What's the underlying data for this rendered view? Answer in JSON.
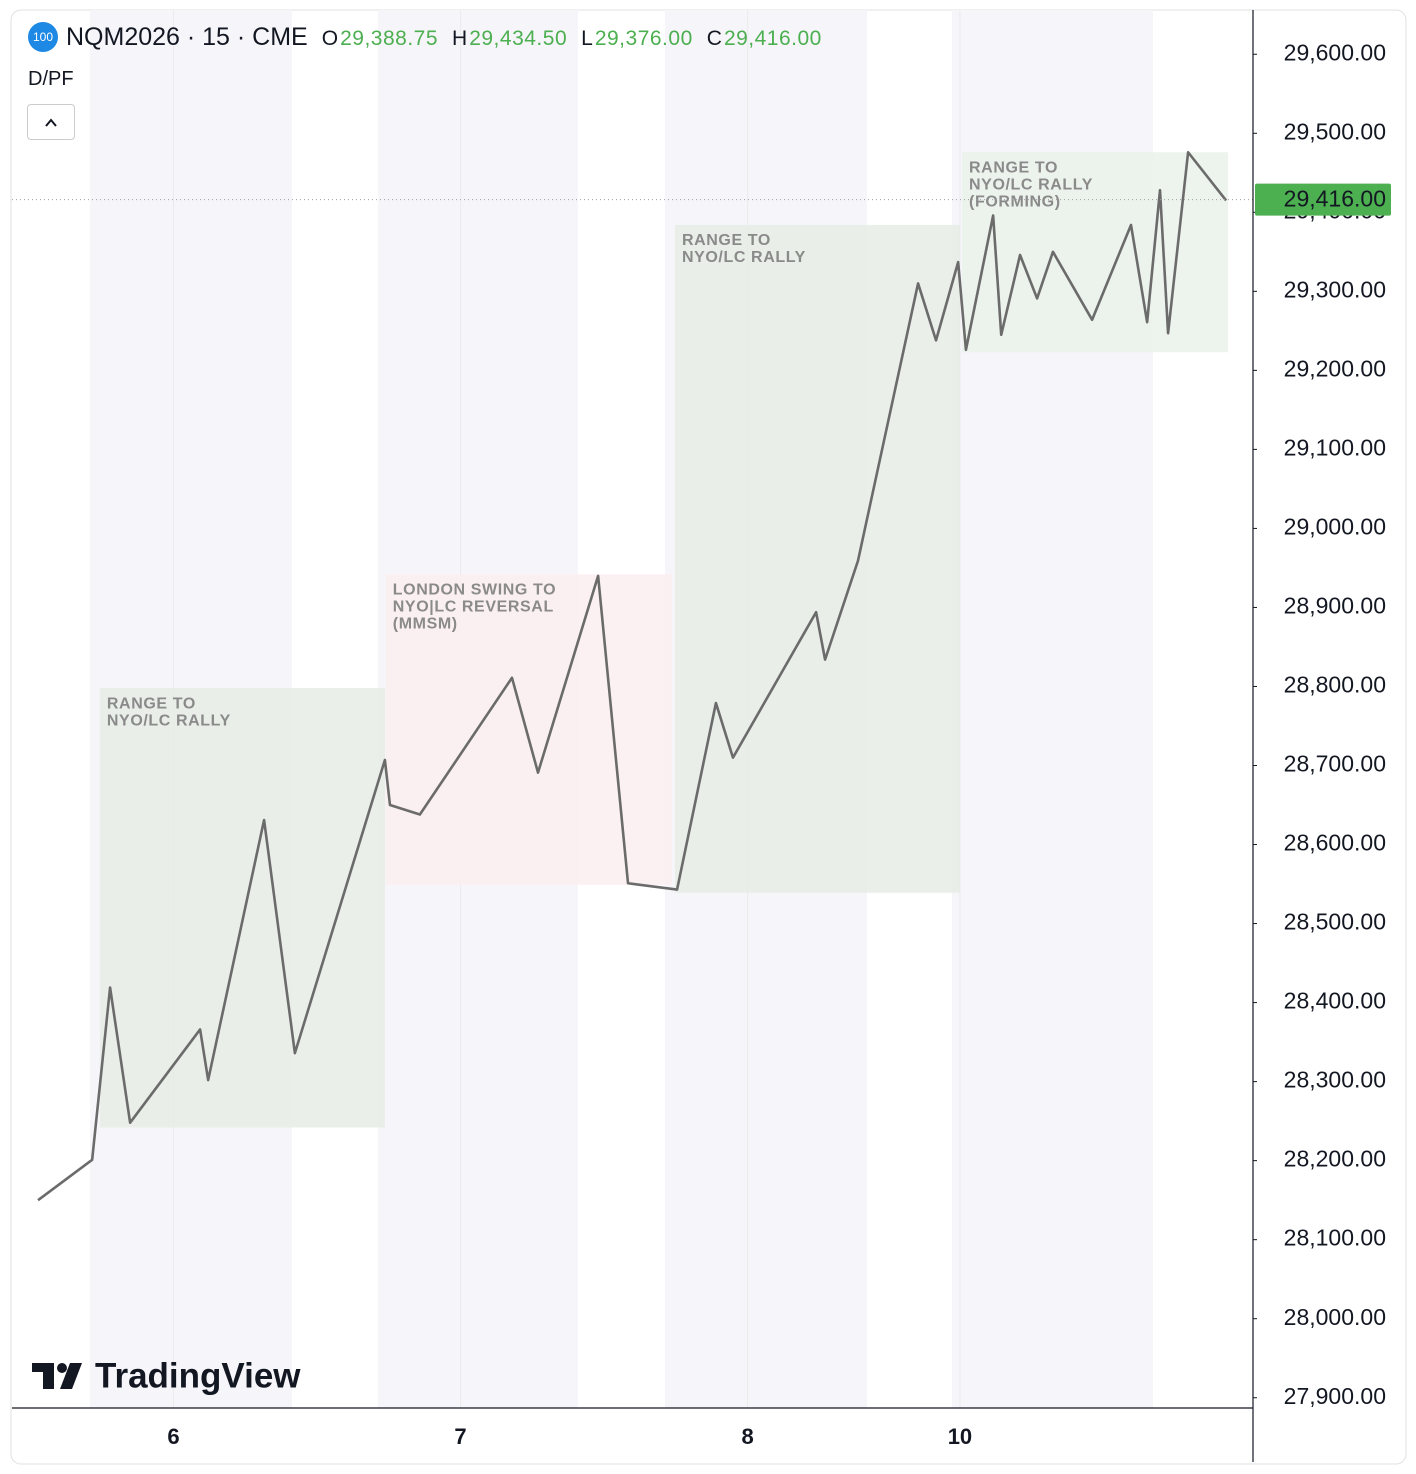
{
  "header": {
    "badge": "100",
    "symbol": "NQM2026 · 15 · CME",
    "ohlc": [
      {
        "label": "O",
        "value": "29,388.75"
      },
      {
        "label": "H",
        "value": "29,434.50"
      },
      {
        "label": "L",
        "value": "29,376.00"
      },
      {
        "label": "C",
        "value": "29,416.00"
      }
    ],
    "indicator": "D/PF",
    "watermark": "TradingView"
  },
  "chart_data": {
    "type": "line",
    "xlim": [
      0,
      415
    ],
    "xticks": [
      {
        "value": 54,
        "label": "6"
      },
      {
        "value": 150,
        "label": "7"
      },
      {
        "value": 246,
        "label": "8"
      },
      {
        "value": 317,
        "label": "10"
      }
    ],
    "ylim": [
      27887,
      29656
    ],
    "yticks": [
      {
        "value": 27900,
        "label": "27,900.00"
      },
      {
        "value": 28000,
        "label": "28,000.00"
      },
      {
        "value": 28100,
        "label": "28,100.00"
      },
      {
        "value": 28200,
        "label": "28,200.00"
      },
      {
        "value": 28300,
        "label": "28,300.00"
      },
      {
        "value": 28400,
        "label": "28,400.00"
      },
      {
        "value": 28500,
        "label": "28,500.00"
      },
      {
        "value": 28600,
        "label": "28,600.00"
      },
      {
        "value": 28700,
        "label": "28,700.00"
      },
      {
        "value": 28800,
        "label": "28,800.00"
      },
      {
        "value": 28900,
        "label": "28,900.00"
      },
      {
        "value": 29000,
        "label": "29,000.00"
      },
      {
        "value": 29100,
        "label": "29,100.00"
      },
      {
        "value": 29200,
        "label": "29,200.00"
      },
      {
        "value": 29300,
        "label": "29,300.00"
      },
      {
        "value": 29400,
        "label": "29,400.00"
      },
      {
        "value": 29500,
        "label": "29,500.00"
      },
      {
        "value": 29600,
        "label": "29,600.00"
      }
    ],
    "series": [
      {
        "color": "#6b6b6b",
        "x": [
          8.7,
          26.8,
          32.8,
          39.5,
          62.9,
          65.6,
          84.3,
          94.6,
          124.7,
          126.4,
          136.4,
          167.2,
          175.9,
          196,
          206,
          222.4,
          235.4,
          241.1,
          268.9,
          271.9,
          282.9,
          303,
          309,
          316.4,
          319,
          328.1,
          330.8,
          337.1,
          342.8,
          348.1,
          361.2,
          374.2,
          379.6,
          383.9,
          386.6,
          393.3,
          406
        ],
        "values": [
          28150,
          28201,
          28419,
          28248,
          28366,
          28302,
          28631,
          28336,
          28707,
          28650,
          28638,
          28811,
          28691,
          28940,
          28551,
          28543,
          28779,
          28710,
          28894,
          28834,
          28959,
          29310,
          29238,
          29337,
          29226,
          29396,
          29245,
          29346,
          29291,
          29350,
          29264,
          29384,
          29261,
          29428,
          29247,
          29476,
          29415
        ]
      }
    ],
    "annotations": [
      {
        "text": [
          "RANGE TO",
          "NYO/LC RALLY"
        ],
        "color": "#e6ece6",
        "x": [
          29.4,
          124.7
        ],
        "y": [
          28242,
          28798
        ]
      },
      {
        "text": [
          "LONDON SWING TO",
          "NYO|LC REVERSAL",
          "(MMSM)"
        ],
        "color": "#fbeef0",
        "x": [
          125,
          220.7
        ],
        "y": [
          28549,
          28942
        ]
      },
      {
        "text": [
          "RANGE TO",
          "NYO/LC RALLY"
        ],
        "color": "#e6ece6",
        "x": [
          221.7,
          317
        ],
        "y": [
          28539,
          29384
        ]
      },
      {
        "text": [
          "RANGE TO",
          "NYO/LC RALLY",
          "(FORMING)"
        ],
        "color": "#eaf1ea",
        "x": [
          317.7,
          406.7
        ],
        "y": [
          29223,
          29476
        ]
      }
    ],
    "last_price": {
      "value": 29416,
      "label": "29,416.00",
      "color": "#4caf50"
    },
    "grid": true
  }
}
